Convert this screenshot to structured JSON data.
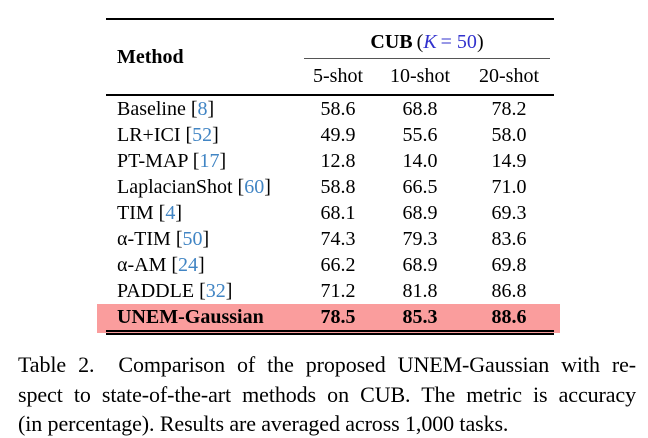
{
  "table": {
    "header": {
      "method_label": "Method",
      "group_title": "CUB",
      "group_k_open": "(",
      "group_k_var": "K",
      "group_k_value": "= 50",
      "group_k_close": ")",
      "subheaders": [
        "5-shot",
        "10-shot",
        "20-shot"
      ]
    },
    "rows": [
      {
        "method": "Baseline",
        "cite": "8",
        "values": [
          "58.6",
          "68.8",
          "78.2"
        ],
        "highlight": false,
        "bold": false
      },
      {
        "method": "LR+ICI",
        "cite": "52",
        "values": [
          "49.9",
          "55.6",
          "58.0"
        ],
        "highlight": false,
        "bold": false
      },
      {
        "method": "PT-MAP",
        "cite": "17",
        "values": [
          "12.8",
          "14.0",
          "14.9"
        ],
        "highlight": false,
        "bold": false
      },
      {
        "method": "LaplacianShot",
        "cite": "60",
        "values": [
          "58.8",
          "66.5",
          "71.0"
        ],
        "highlight": false,
        "bold": false
      },
      {
        "method": "TIM",
        "cite": "4",
        "values": [
          "68.1",
          "68.9",
          "69.3"
        ],
        "highlight": false,
        "bold": false
      },
      {
        "method": "α-TIM",
        "cite": "50",
        "values": [
          "74.3",
          "79.3",
          "83.6"
        ],
        "highlight": false,
        "bold": false
      },
      {
        "method": "α-AM",
        "cite": "24",
        "values": [
          "66.2",
          "68.9",
          "69.8"
        ],
        "highlight": false,
        "bold": false
      },
      {
        "method": "PADDLE",
        "cite": "32",
        "values": [
          "71.2",
          "81.8",
          "86.8"
        ],
        "highlight": false,
        "bold": false
      },
      {
        "method": "UNEM-Gaussian",
        "cite": null,
        "values": [
          "78.5",
          "85.3",
          "88.6"
        ],
        "highlight": true,
        "bold": true
      }
    ]
  },
  "caption": {
    "lines": [
      "Table 2.  Comparison of the proposed UNEM-Gaussian with re-",
      "spect to state-of-the-art methods on CUB. The metric is accuracy",
      "(in percentage). Results are averaged across 1,000 tasks."
    ]
  },
  "colors": {
    "citation_blue": "#4185c4",
    "math_blue": "#3232cd",
    "highlight_pink": "#fa9d9d",
    "rule_black": "#000000",
    "cmidrule_gray": "#555555",
    "text_black": "#000000",
    "background": "#ffffff"
  }
}
